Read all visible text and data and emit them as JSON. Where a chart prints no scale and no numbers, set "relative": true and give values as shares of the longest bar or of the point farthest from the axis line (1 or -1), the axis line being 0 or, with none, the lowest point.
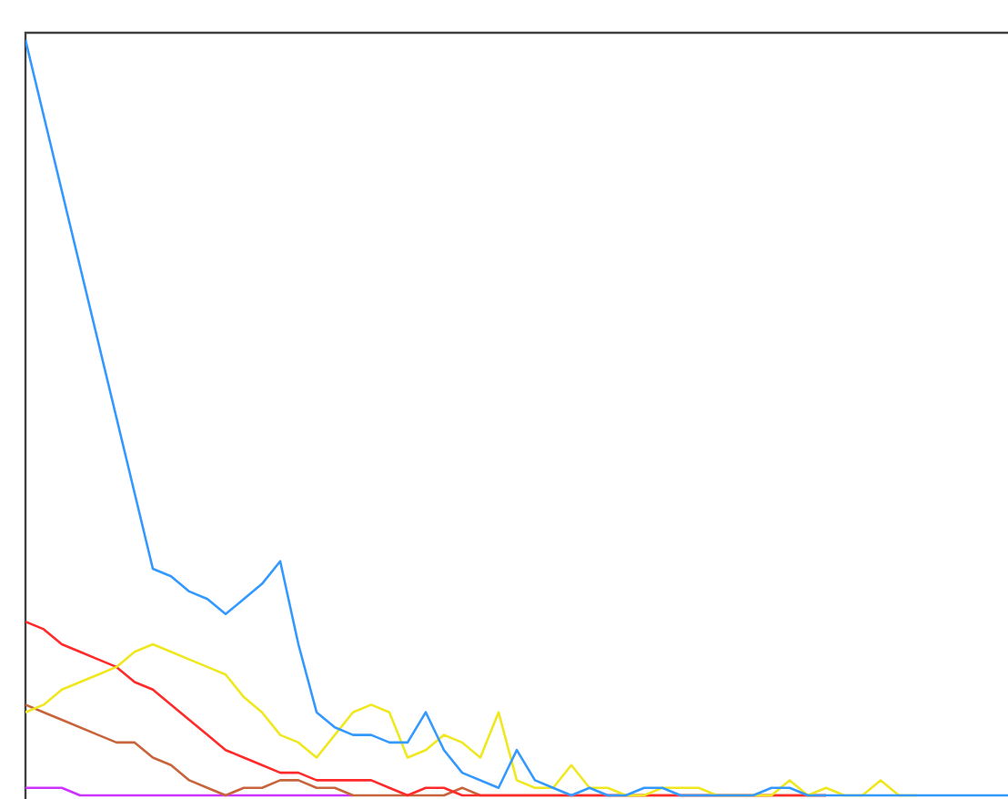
{
  "chart_data": {
    "type": "line",
    "relative": true,
    "tick_labels": false,
    "categories": [
      null,
      null,
      null,
      null,
      null,
      null,
      null,
      null,
      null,
      null,
      null,
      null,
      null,
      null,
      null,
      null,
      null,
      null,
      null,
      null,
      null,
      null,
      null,
      null,
      null,
      null,
      null,
      null,
      null,
      null,
      null,
      null,
      null,
      null,
      null,
      null,
      null,
      null,
      null,
      null,
      null,
      null,
      null,
      null,
      null,
      null,
      null,
      null,
      null,
      null,
      null,
      null,
      null,
      null,
      null
    ],
    "series": [
      {
        "color": "#cc33ff",
        "values": [
          0.01,
          0.01,
          0.01,
          0,
          0,
          0,
          0,
          0,
          0,
          0,
          0,
          0,
          0,
          0,
          0,
          0,
          0,
          0,
          0,
          null,
          null,
          null,
          null,
          null,
          null,
          null,
          null,
          null,
          null,
          null,
          null,
          null,
          null,
          null,
          null,
          null,
          null,
          null,
          null,
          null,
          null,
          null,
          null,
          null,
          null,
          null,
          null,
          null,
          null,
          null,
          null,
          null,
          null,
          null,
          null
        ]
      },
      {
        "color": "#c8643c",
        "values": [
          0.12,
          0.11,
          0.1,
          0.09,
          0.08,
          0.07,
          0.07,
          0.05,
          0.04,
          0.02,
          0.01,
          0,
          0.01,
          0.01,
          0.02,
          0.02,
          0.01,
          0.01,
          0,
          0,
          0,
          0,
          0,
          0,
          0.01,
          0,
          0,
          0,
          0,
          0,
          0,
          0,
          0,
          0,
          0,
          0,
          0,
          0,
          0,
          0,
          0,
          0,
          0,
          0,
          0,
          null,
          null,
          null,
          null,
          null,
          null,
          null,
          null,
          null,
          null
        ]
      },
      {
        "color": "#ff2a2a",
        "values": [
          0.23,
          0.22,
          0.2,
          0.19,
          0.18,
          0.17,
          0.15,
          0.14,
          0.12,
          0.1,
          0.08,
          0.06,
          0.05,
          0.04,
          0.03,
          0.03,
          0.02,
          0.02,
          0.02,
          0.02,
          0.01,
          0,
          0.01,
          0.01,
          0,
          0,
          0,
          0,
          0,
          0,
          0,
          0,
          0,
          0,
          0,
          0,
          0,
          0,
          0,
          0,
          0,
          0,
          0,
          0,
          0,
          null,
          null,
          null,
          null,
          null,
          null,
          null,
          null,
          null,
          null
        ]
      },
      {
        "color": "#f0e81e",
        "values": [
          0.11,
          0.12,
          0.14,
          0.15,
          0.16,
          0.17,
          0.19,
          0.2,
          0.19,
          0.18,
          0.17,
          0.16,
          0.13,
          0.11,
          0.08,
          0.07,
          0.05,
          0.08,
          0.11,
          0.12,
          0.11,
          0.05,
          0.06,
          0.08,
          0.07,
          0.05,
          0.11,
          0.02,
          0.01,
          0.01,
          0.04,
          0.01,
          0.01,
          0,
          0,
          0.01,
          0.01,
          0.01,
          0,
          0,
          0,
          0,
          0.02,
          0,
          0.01,
          0,
          0,
          0.02,
          0,
          0,
          null,
          null,
          null,
          null,
          null
        ]
      },
      {
        "color": "#3399ff",
        "values": [
          1,
          0.9,
          0.8,
          0.7,
          0.6,
          0.5,
          0.4,
          0.3,
          0.29,
          0.27,
          0.26,
          0.24,
          0.26,
          0.28,
          0.31,
          0.2,
          0.11,
          0.09,
          0.08,
          0.08,
          0.07,
          0.07,
          0.11,
          0.06,
          0.03,
          0.02,
          0.01,
          0.06,
          0.02,
          0.01,
          0,
          0.01,
          0,
          0,
          0.01,
          0.01,
          0,
          0,
          0,
          0,
          0,
          0.01,
          0.01,
          0,
          0,
          0,
          0,
          0,
          0,
          0,
          0,
          0,
          0,
          0,
          0
        ]
      }
    ]
  }
}
